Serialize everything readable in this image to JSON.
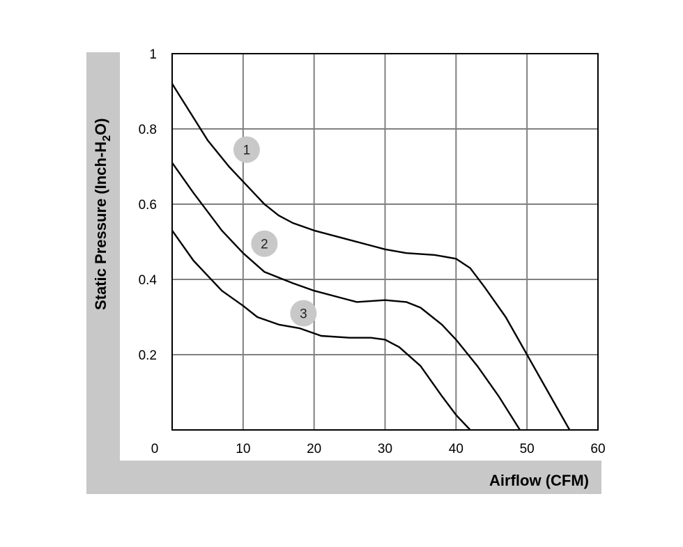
{
  "chart_data": {
    "type": "line",
    "xlabel": "Airflow (CFM)",
    "ylabel_main": "Static Pressure (Inch-H",
    "ylabel_sub": "2",
    "ylabel_end": "O)",
    "xlim": [
      0,
      60
    ],
    "ylim": [
      0,
      1
    ],
    "x_ticks": [
      0,
      10,
      20,
      30,
      40,
      50,
      60
    ],
    "y_ticks": [
      0.2,
      0.4,
      0.6,
      0.8,
      1
    ],
    "x_tick_labels": [
      "0",
      "10",
      "20",
      "30",
      "40",
      "50",
      "60"
    ],
    "y_tick_labels": [
      "0.2",
      "0.4",
      "0.6",
      "0.8",
      "1"
    ],
    "grid": true,
    "series": [
      {
        "name": "1",
        "marker_at": [
          10.5,
          0.745
        ],
        "points": [
          [
            0,
            0.92
          ],
          [
            2,
            0.86
          ],
          [
            5,
            0.77
          ],
          [
            8,
            0.7
          ],
          [
            10,
            0.66
          ],
          [
            12,
            0.62
          ],
          [
            13,
            0.6
          ],
          [
            15,
            0.57
          ],
          [
            17,
            0.55
          ],
          [
            20,
            0.53
          ],
          [
            25,
            0.505
          ],
          [
            28,
            0.49
          ],
          [
            30,
            0.48
          ],
          [
            33,
            0.47
          ],
          [
            37,
            0.465
          ],
          [
            40,
            0.455
          ],
          [
            42,
            0.43
          ],
          [
            44,
            0.38
          ],
          [
            47,
            0.3
          ],
          [
            50,
            0.2
          ],
          [
            53,
            0.1
          ],
          [
            56,
            0.0
          ]
        ]
      },
      {
        "name": "2",
        "marker_at": [
          13,
          0.495
        ],
        "points": [
          [
            0,
            0.71
          ],
          [
            3,
            0.63
          ],
          [
            7,
            0.53
          ],
          [
            10,
            0.47
          ],
          [
            13,
            0.42
          ],
          [
            17,
            0.39
          ],
          [
            20,
            0.37
          ],
          [
            24,
            0.35
          ],
          [
            26,
            0.34
          ],
          [
            30,
            0.345
          ],
          [
            33,
            0.34
          ],
          [
            35,
            0.325
          ],
          [
            38,
            0.28
          ],
          [
            40,
            0.24
          ],
          [
            43,
            0.17
          ],
          [
            46,
            0.09
          ],
          [
            49,
            0.0
          ]
        ]
      },
      {
        "name": "3",
        "marker_at": [
          18.5,
          0.31
        ],
        "points": [
          [
            0,
            0.53
          ],
          [
            3,
            0.45
          ],
          [
            7,
            0.37
          ],
          [
            10,
            0.33
          ],
          [
            12,
            0.3
          ],
          [
            15,
            0.28
          ],
          [
            18,
            0.27
          ],
          [
            21,
            0.25
          ],
          [
            25,
            0.245
          ],
          [
            28,
            0.245
          ],
          [
            30,
            0.24
          ],
          [
            32,
            0.22
          ],
          [
            35,
            0.17
          ],
          [
            38,
            0.09
          ],
          [
            40,
            0.04
          ],
          [
            42,
            0.0
          ]
        ]
      }
    ]
  }
}
